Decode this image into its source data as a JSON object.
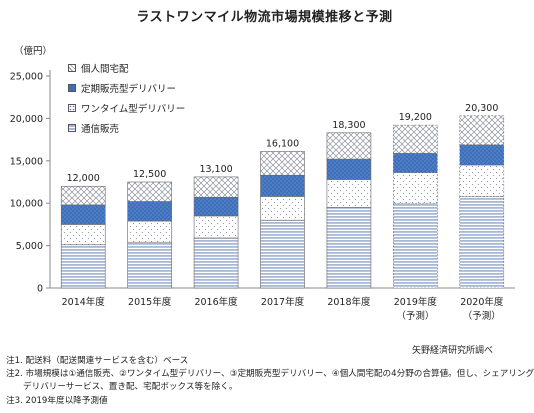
{
  "title": "ラストワンマイル物流市場規模推移と予測",
  "unit_label": "（億円）",
  "source": "矢野経済研究所調べ",
  "notes": [
    "注1. 配送料（配送関連サービスを含む）ベース",
    "注2. 市場規模は①通信販売、②ワンタイム型デリバリー、③定期販売型デリバリー、④個人間宅配の4分野の合算値。但し、シェアリング",
    "デリバリーサービス、置き配、宅配ボックス等を除く。",
    "注3. 2019年度以降予測値"
  ],
  "colors": {
    "mail_order": "#a7b9d6",
    "one_time": "#ffffff",
    "subscription": "#3f6fb8",
    "c2c": "#e4e7ec",
    "axis": "#888888",
    "grid": "#dddddd"
  },
  "chart_data": {
    "type": "bar",
    "stacked": true,
    "categories": [
      "2014年度",
      "2015年度",
      "2016年度",
      "2017年度",
      "2018年度",
      "2019年度",
      "2020年度"
    ],
    "category_sublabels": [
      "",
      "",
      "",
      "",
      "",
      "（予測）",
      "（予測）"
    ],
    "forecast_flags": [
      false,
      false,
      false,
      false,
      false,
      true,
      true
    ],
    "series": [
      {
        "name": "通信販売",
        "key": "mail_order",
        "values": [
          5100,
          5400,
          5900,
          8000,
          9500,
          10000,
          10800
        ]
      },
      {
        "name": "ワンタイム型デリバリー",
        "key": "one_time",
        "values": [
          2400,
          2500,
          2600,
          2800,
          3300,
          3600,
          3700
        ]
      },
      {
        "name": "定期販売型デリバリー",
        "key": "subscription",
        "values": [
          2300,
          2300,
          2200,
          2500,
          2400,
          2300,
          2400
        ]
      },
      {
        "name": "個人間宅配",
        "key": "c2c",
        "values": [
          2200,
          2300,
          2400,
          2800,
          3100,
          3300,
          3400
        ]
      }
    ],
    "totals": [
      "12,000",
      "12,500",
      "13,100",
      "16,100",
      "18,300",
      "19,200",
      "20,300"
    ],
    "total_values": [
      12000,
      12500,
      13100,
      16100,
      18300,
      19200,
      20300
    ],
    "ylim": [
      0,
      25000
    ],
    "yticks": [
      0,
      5000,
      10000,
      15000,
      20000,
      25000
    ],
    "ytick_labels": [
      "0",
      "5,000",
      "10,000",
      "15,000",
      "20,000",
      "25,000"
    ],
    "legend_order": [
      "個人間宅配",
      "定期販売型デリバリー",
      "ワンタイム型デリバリー",
      "通信販売"
    ],
    "legend_keys": [
      "c2c",
      "subscription",
      "one_time",
      "mail_order"
    ],
    "grid": false,
    "legend_position": "top-left"
  }
}
